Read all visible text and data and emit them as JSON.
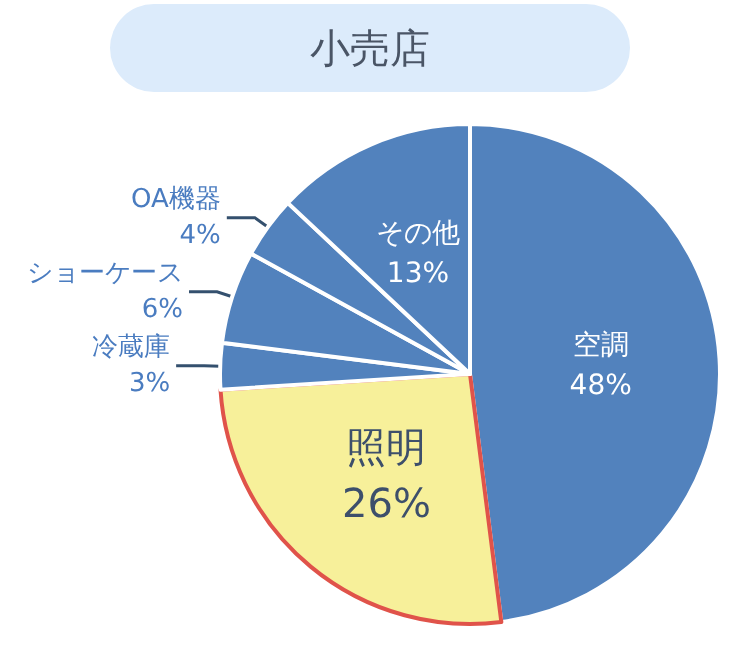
{
  "chart_data": {
    "type": "pie",
    "title": "小売店",
    "categories": [
      "空調",
      "照明",
      "冷蔵庫",
      "ショーケース",
      "OA機器",
      "その他"
    ],
    "values": [
      48,
      26,
      3,
      6,
      4,
      13
    ],
    "colors": [
      "#5282bd",
      "#f7f09a",
      "#5282bd",
      "#5282bd",
      "#5282bd",
      "#5282bd"
    ],
    "value_labels": [
      "48%",
      "26%",
      "3%",
      "6%",
      "4%",
      "13%"
    ],
    "legend": false
  }
}
